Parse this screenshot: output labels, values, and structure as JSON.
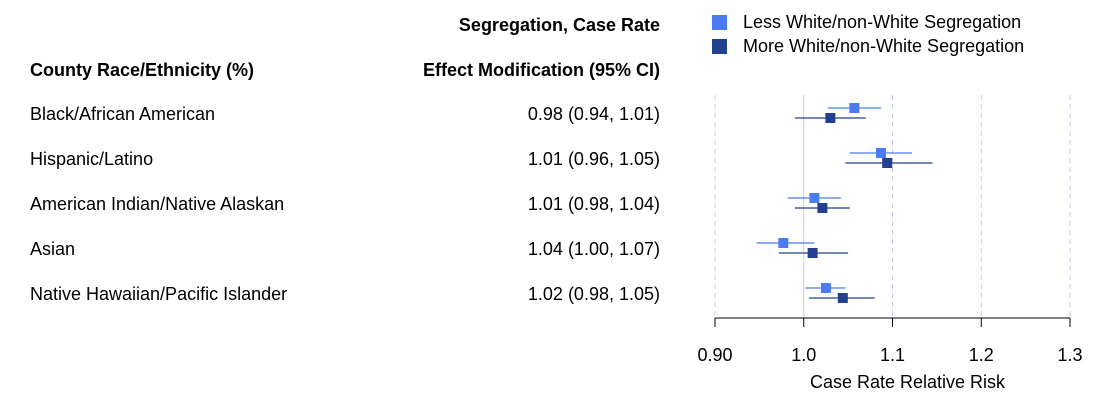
{
  "headers": {
    "race_col": "County Race/Ethnicity (%)",
    "effect_col_line1": "Segregation, Case Rate",
    "effect_col_line2": "Effect Modification (95% CI)"
  },
  "legend": [
    {
      "label": "Less White/non-White Segregation",
      "color": "#4a7cf0"
    },
    {
      "label": "More White/non-White Segregation",
      "color": "#23408e"
    }
  ],
  "rows": [
    {
      "label": "Black/African American",
      "effect": "0.98 (0.94, 1.01)"
    },
    {
      "label": "Hispanic/Latino",
      "effect": "1.01 (0.96, 1.05)"
    },
    {
      "label": "American Indian/Native Alaskan",
      "effect": "1.01 (0.98, 1.04)"
    },
    {
      "label": "Asian",
      "effect": "1.04 (1.00, 1.07)"
    },
    {
      "label": "Native Hawaiian/Pacific Islander",
      "effect": "1.02 (0.98, 1.05)"
    }
  ],
  "chart_data": {
    "type": "scatter",
    "xlabel": "Case Rate Relative Risk",
    "xlim": [
      0.9,
      1.3
    ],
    "ticks": [
      0.9,
      1.0,
      1.1,
      1.2,
      1.3
    ],
    "tick_labels": [
      "0.90",
      "1.0",
      "1.1",
      "1.2",
      "1.3"
    ],
    "reference_line": 1.0,
    "categories": [
      "Black/African American",
      "Hispanic/Latino",
      "American Indian/Native Alaskan",
      "Asian",
      "Native Hawaiian/Pacific Islander"
    ],
    "series": [
      {
        "name": "Less White/non-White Segregation",
        "color": "#4a7cf0",
        "estimate": [
          1.057,
          1.087,
          1.012,
          0.977,
          1.025
        ],
        "lower": [
          1.027,
          1.052,
          0.982,
          0.947,
          1.002
        ],
        "upper": [
          1.087,
          1.122,
          1.042,
          1.012,
          1.047
        ]
      },
      {
        "name": "More White/non-White Segregation",
        "color": "#23408e",
        "estimate": [
          1.03,
          1.094,
          1.021,
          1.01,
          1.044
        ],
        "lower": [
          0.99,
          1.047,
          0.99,
          0.972,
          1.006
        ],
        "upper": [
          1.07,
          1.145,
          1.052,
          1.05,
          1.08
        ]
      }
    ]
  }
}
